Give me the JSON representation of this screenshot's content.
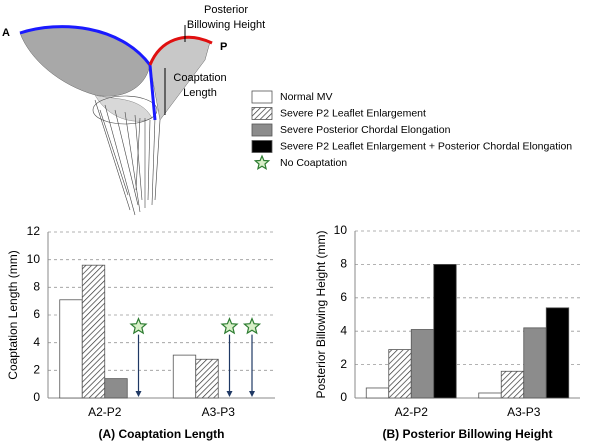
{
  "illustration": {
    "anterior": "A",
    "posterior": "P",
    "billowing_label": [
      "Posterior",
      "Billowing Height"
    ],
    "coaptation_label": [
      "Coaptation",
      "Length"
    ]
  },
  "legend": {
    "no_coaptation": "No Coaptation"
  },
  "chart_data": [
    {
      "type": "bar",
      "title": "(A) Coaptation Length",
      "y_label": "Coaptation Length (mm)",
      "categories": [
        "A2-P2",
        "A3-P3"
      ],
      "ylim": [
        0,
        12
      ],
      "yticks": [
        0,
        2,
        4,
        6,
        8,
        10,
        12
      ],
      "grid": true,
      "series": [
        {
          "name": "Normal MV",
          "color": "#ffffff",
          "values": [
            7.1,
            3.1
          ],
          "no_coaptation": [
            false,
            false
          ]
        },
        {
          "name": "Severe P2 Leaflet Enlargement",
          "color": "#ffffff",
          "pattern": "hatch",
          "values": [
            9.6,
            2.8
          ],
          "no_coaptation": [
            false,
            false
          ]
        },
        {
          "name": "Severe Posterior Chordal Elongation",
          "color": "#8c8c8c",
          "values": [
            1.4,
            null
          ],
          "no_coaptation": [
            false,
            true
          ]
        },
        {
          "name": "Severe P2 Leaflet Enlargement + Posterior Chordal Elongation",
          "color": "#000000",
          "values": [
            null,
            null
          ],
          "no_coaptation": [
            true,
            true
          ]
        }
      ]
    },
    {
      "type": "bar",
      "title": "(B) Posterior Billowing Height",
      "y_label": "Posterior Billowing Height (mm)",
      "categories": [
        "A2-P2",
        "A3-P3"
      ],
      "ylim": [
        0,
        10
      ],
      "yticks": [
        0,
        2,
        4,
        6,
        8,
        10
      ],
      "grid": true,
      "series": [
        {
          "name": "Normal MV",
          "color": "#ffffff",
          "values": [
            0.6,
            0.3
          ]
        },
        {
          "name": "Severe P2 Leaflet Enlargement",
          "color": "#ffffff",
          "pattern": "hatch",
          "values": [
            2.9,
            1.6
          ]
        },
        {
          "name": "Severe Posterior Chordal Elongation",
          "color": "#8c8c8c",
          "values": [
            4.1,
            4.2
          ]
        },
        {
          "name": "Severe P2 Leaflet Enlargement + Posterior Chordal Elongation",
          "color": "#000000",
          "values": [
            8.0,
            5.4
          ]
        }
      ]
    }
  ]
}
